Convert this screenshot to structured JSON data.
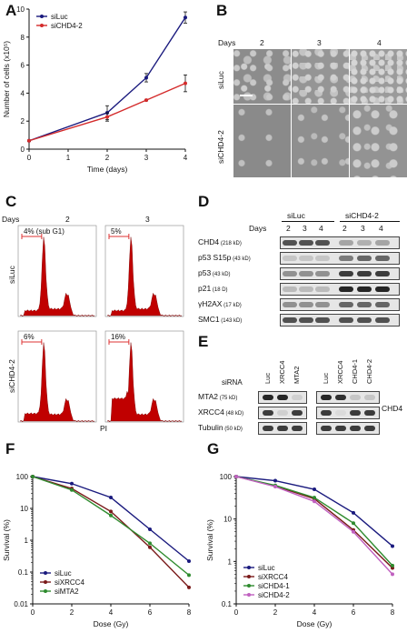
{
  "panel_labels": {
    "a": "A",
    "b": "B",
    "c": "C",
    "d": "D",
    "e": "E",
    "f": "F",
    "g": "G"
  },
  "panel_a": {
    "chart_data": {
      "type": "line",
      "x": [
        0,
        2,
        3,
        4
      ],
      "series": [
        {
          "name": "siLuc",
          "color": "#1a1a7e",
          "values": [
            0.6,
            2.6,
            5.1,
            9.4
          ],
          "err": [
            0.05,
            0.5,
            0.3,
            0.4
          ]
        },
        {
          "name": "siCHD4-2",
          "color": "#d42b2b",
          "values": [
            0.6,
            2.3,
            3.5,
            4.7
          ],
          "err": [
            0.05,
            0.3,
            0.05,
            0.6
          ]
        }
      ],
      "xlabel": "Time (days)",
      "ylabel": "Number of cells (x10⁵)",
      "xlim": [
        0,
        4
      ],
      "ylim": [
        0,
        10
      ],
      "xticks": [
        "0",
        "1",
        "2",
        "3",
        "4"
      ],
      "yticks": [
        "0",
        "2",
        "4",
        "6",
        "8",
        "10"
      ],
      "legend": "top-left"
    }
  },
  "panel_b": {
    "days_label": "Days",
    "days": [
      "2",
      "3",
      "4"
    ],
    "rows": [
      "siLuc",
      "siCHD4-2"
    ]
  },
  "panel_c": {
    "days_label": "Days",
    "days": [
      "2",
      "3"
    ],
    "rows": [
      "siLuc",
      "siCHD4-2"
    ],
    "percents": [
      "4% (sub G1)",
      "5%",
      "6%",
      "16%"
    ],
    "xlabel": "PI"
  },
  "panel_d": {
    "days_label": "Days",
    "groups": [
      "siLuc",
      "siCHD4-2"
    ],
    "days": [
      "2",
      "3",
      "4",
      "2",
      "3",
      "4"
    ],
    "rows": [
      {
        "name": "CHD4",
        "size": "(218 kD)"
      },
      {
        "name": "p53 S15p",
        "size": "(43 kD)"
      },
      {
        "name": "p53",
        "size": "(43 kD)"
      },
      {
        "name": "p21",
        "size": "(18 D)"
      },
      {
        "name": "γH2AX",
        "size": "(17 kD)"
      },
      {
        "name": "SMC1",
        "size": "(143 kD)"
      }
    ]
  },
  "panel_e": {
    "sirna_label": "siRNA",
    "lanes_left": [
      "Luc",
      "XRCC4",
      "MTA2"
    ],
    "lanes_right": [
      "Luc",
      "XRCC4",
      "CHD4-1",
      "CHD4-2"
    ],
    "rows": [
      {
        "name": "MTA2",
        "size": "(75 kD)"
      },
      {
        "name": "XRCC4",
        "size": "(48 kD)"
      },
      {
        "name": "Tubulin",
        "size": "(50 kD)"
      }
    ],
    "right_label": "CHD4"
  },
  "panel_f": {
    "chart_data": {
      "type": "line",
      "x": [
        0,
        2,
        4,
        6,
        8
      ],
      "series": [
        {
          "name": "siLuc",
          "color": "#1a1a7e",
          "values": [
            100,
            60,
            22,
            2.2,
            0.22
          ]
        },
        {
          "name": "siXRCC4",
          "color": "#7a1a1a",
          "values": [
            100,
            42,
            8,
            0.6,
            0.033
          ]
        },
        {
          "name": "siMTA2",
          "color": "#2e8b2e",
          "values": [
            100,
            38,
            6,
            0.8,
            0.08
          ]
        }
      ],
      "xlabel": "Dose (Gy)",
      "ylabel": "Survival (%)",
      "yscale": "log",
      "ylim": [
        0.01,
        100
      ],
      "xlim": [
        0,
        8
      ],
      "xticks": [
        "0",
        "2",
        "4",
        "6",
        "8"
      ],
      "yticks": [
        "0.01",
        "0.1",
        "1",
        "10",
        "100"
      ],
      "legend": "bottom-left"
    }
  },
  "panel_g": {
    "chart_data": {
      "type": "line",
      "x": [
        0,
        2,
        4,
        6,
        8
      ],
      "series": [
        {
          "name": "siLuc",
          "color": "#1a1a7e",
          "values": [
            100,
            80,
            50,
            14,
            2.3
          ]
        },
        {
          "name": "siXRCC4",
          "color": "#7a1a1a",
          "values": [
            100,
            60,
            30,
            5.5,
            0.7
          ]
        },
        {
          "name": "siCHD4-1",
          "color": "#2e8b2e",
          "values": [
            100,
            62,
            32,
            8,
            0.8
          ]
        },
        {
          "name": "siCHD4-2",
          "color": "#c060c0",
          "values": [
            100,
            58,
            26,
            5,
            0.5
          ]
        }
      ],
      "xlabel": "Dose (Gy)",
      "ylabel": "Survival (%)",
      "yscale": "log",
      "ylim": [
        0.1,
        100
      ],
      "xlim": [
        0,
        8
      ],
      "xticks": [
        "0",
        "2",
        "4",
        "6",
        "8"
      ],
      "yticks": [
        "0.1",
        "1",
        "10",
        "100"
      ],
      "legend": "bottom-left"
    }
  }
}
